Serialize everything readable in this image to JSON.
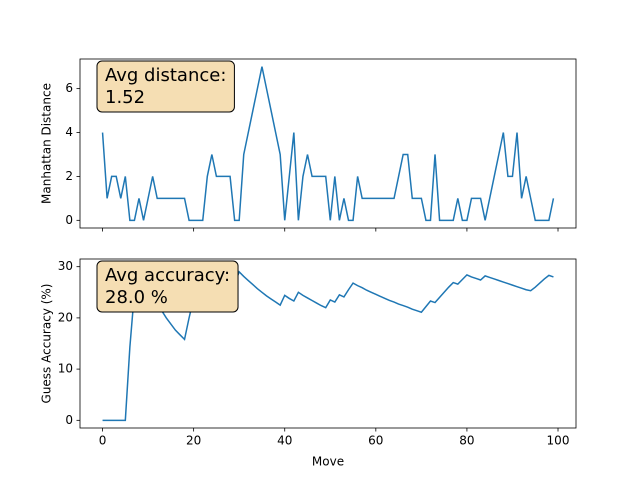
{
  "chart_data": [
    {
      "type": "line",
      "ylabel": "Manhattan Distance",
      "annotation": [
        "Avg distance:",
        "1.52"
      ],
      "x": [
        0,
        1,
        2,
        3,
        4,
        5,
        6,
        7,
        8,
        9,
        10,
        11,
        12,
        13,
        14,
        15,
        16,
        17,
        18,
        19,
        20,
        21,
        22,
        23,
        24,
        25,
        26,
        27,
        28,
        29,
        30,
        31,
        32,
        33,
        34,
        35,
        36,
        37,
        38,
        39,
        40,
        41,
        42,
        43,
        44,
        45,
        46,
        47,
        48,
        49,
        50,
        51,
        52,
        53,
        54,
        55,
        56,
        57,
        58,
        59,
        60,
        61,
        62,
        63,
        64,
        65,
        66,
        67,
        68,
        69,
        70,
        71,
        72,
        73,
        74,
        75,
        76,
        77,
        78,
        79,
        80,
        81,
        82,
        83,
        84,
        85,
        86,
        87,
        88,
        89,
        90,
        91,
        92,
        93,
        94,
        95,
        96,
        97,
        98,
        99
      ],
      "series": [
        {
          "color": "#1f77b4",
          "values": [
            4,
            1,
            2,
            2,
            1,
            2,
            0,
            0,
            1,
            0,
            1,
            2,
            1,
            1,
            1,
            1,
            1,
            1,
            1,
            0,
            0,
            0,
            0,
            2,
            3,
            2,
            2,
            2,
            2,
            0,
            0,
            3,
            4,
            5,
            6,
            7,
            6,
            5,
            4,
            3,
            0,
            2,
            4,
            0,
            2,
            3,
            2,
            2,
            2,
            2,
            0,
            2,
            0,
            1,
            0,
            0,
            2,
            1,
            1,
            1,
            1,
            1,
            1,
            1,
            1,
            2,
            3,
            3,
            1,
            1,
            1,
            0,
            0,
            3,
            0,
            0,
            0,
            0,
            1,
            0,
            0,
            1,
            1,
            1,
            0,
            1,
            2,
            3,
            4,
            2,
            2,
            4,
            1,
            2,
            1,
            0,
            0,
            0,
            0,
            1
          ]
        }
      ],
      "xlim": [
        -4.95,
        103.95
      ],
      "xticks": [
        0,
        20,
        40,
        60,
        80,
        100
      ],
      "xtick_labels": false,
      "ylim": [
        -0.35,
        7.35
      ],
      "yticks": [
        0,
        2,
        4,
        6
      ]
    },
    {
      "type": "line",
      "xlabel": "Move",
      "ylabel": "Guess Accuracy (%)",
      "annotation": [
        "Avg accuracy:",
        "28.0 %"
      ],
      "x": [
        0,
        1,
        2,
        3,
        4,
        5,
        6,
        7,
        8,
        9,
        10,
        11,
        12,
        13,
        14,
        15,
        16,
        17,
        18,
        19,
        20,
        21,
        22,
        23,
        24,
        25,
        26,
        27,
        28,
        29,
        30,
        31,
        32,
        33,
        34,
        35,
        36,
        37,
        38,
        39,
        40,
        41,
        42,
        43,
        44,
        45,
        46,
        47,
        48,
        49,
        50,
        51,
        52,
        53,
        54,
        55,
        56,
        57,
        58,
        59,
        60,
        61,
        62,
        63,
        64,
        65,
        66,
        67,
        68,
        69,
        70,
        71,
        72,
        73,
        74,
        75,
        76,
        77,
        78,
        79,
        80,
        81,
        82,
        83,
        84,
        85,
        86,
        87,
        88,
        89,
        90,
        91,
        92,
        93,
        94,
        95,
        96,
        97,
        98,
        99
      ],
      "series": [
        {
          "color": "#1f77b4",
          "values": [
            0,
            0,
            0,
            0,
            0,
            0,
            14.3,
            25,
            27.8,
            30,
            27.3,
            25,
            23.1,
            21.4,
            20,
            18.8,
            17.6,
            16.7,
            15.8,
            20,
            23.8,
            27.3,
            26.1,
            25,
            28,
            26.9,
            25.9,
            25,
            24.1,
            26.7,
            29,
            28.1,
            27.3,
            26.5,
            25.7,
            25,
            24.3,
            23.7,
            23.1,
            22.5,
            24.4,
            23.8,
            23.3,
            25,
            24.4,
            23.9,
            23.4,
            22.9,
            22.4,
            22,
            23.5,
            23.1,
            24.5,
            24.1,
            25.5,
            26.8,
            26.3,
            25.9,
            25.4,
            25,
            24.6,
            24.2,
            23.8,
            23.4,
            23.1,
            22.7,
            22.4,
            22.1,
            21.7,
            21.4,
            21.1,
            22.2,
            23.3,
            23,
            24,
            25,
            26,
            26.9,
            26.6,
            27.5,
            28.4,
            28,
            27.7,
            27.4,
            28.2,
            27.9,
            27.6,
            27.3,
            27,
            26.7,
            26.4,
            26.1,
            25.8,
            25.5,
            25.3,
            26,
            26.8,
            27.6,
            28.3,
            28
          ]
        }
      ],
      "xlim": [
        -4.95,
        103.95
      ],
      "xticks": [
        0,
        20,
        40,
        60,
        80,
        100
      ],
      "xtick_labels": true,
      "ylim": [
        -1.5,
        31.5
      ],
      "yticks": [
        0,
        10,
        20,
        30
      ]
    }
  ]
}
